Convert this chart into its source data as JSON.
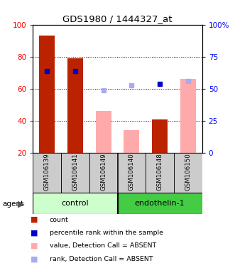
{
  "title": "GDS1980 / 1444327_at",
  "samples": [
    "GSM106139",
    "GSM106141",
    "GSM106149",
    "GSM106140",
    "GSM106148",
    "GSM106150"
  ],
  "groups": [
    {
      "name": "control",
      "color": "#ccffcc",
      "samples": [
        0,
        1,
        2
      ]
    },
    {
      "name": "endothelin-1",
      "color": "#44cc44",
      "samples": [
        3,
        4,
        5
      ]
    }
  ],
  "count_bars": [
    93,
    79,
    null,
    null,
    41,
    null
  ],
  "count_color": "#bb2200",
  "value_absent_bars": [
    null,
    null,
    46,
    34,
    null,
    66
  ],
  "value_absent_color": "#ffaaaa",
  "rank_absent_dots": [
    null,
    null,
    59,
    62,
    null,
    65
  ],
  "rank_absent_color": "#aaaaee",
  "percentile_dots": [
    71,
    71,
    null,
    null,
    63,
    null
  ],
  "percentile_color": "#0000cc",
  "ylim_left": [
    20,
    100
  ],
  "ylim_right": [
    0,
    100
  ],
  "yticks_left": [
    20,
    40,
    60,
    80,
    100
  ],
  "yticks_right": [
    0,
    25,
    50,
    75,
    100
  ],
  "yticklabels_right": [
    "0",
    "25",
    "50",
    "75",
    "100%"
  ],
  "bar_width": 0.55,
  "figsize": [
    3.31,
    3.84
  ],
  "dpi": 100,
  "legend_items": [
    {
      "label": "count",
      "color": "#bb2200"
    },
    {
      "label": "percentile rank within the sample",
      "color": "#0000cc"
    },
    {
      "label": "value, Detection Call = ABSENT",
      "color": "#ffaaaa"
    },
    {
      "label": "rank, Detection Call = ABSENT",
      "color": "#aaaaee"
    }
  ]
}
